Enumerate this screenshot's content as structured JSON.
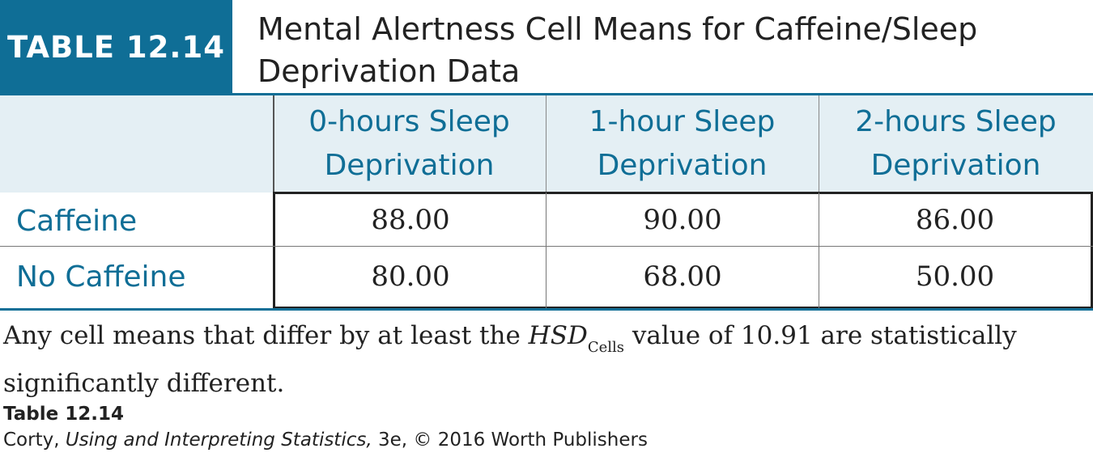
{
  "table": {
    "badge": "TABLE 12.14",
    "title_line1": "Mental Alertness Cell Means for Caffeine/Sleep",
    "title_line2": "Deprivation Data",
    "columns": [
      {
        "line1": "0-hours Sleep",
        "line2": "Deprivation"
      },
      {
        "line1": "1-hour Sleep",
        "line2": "Deprivation"
      },
      {
        "line1": "2-hours Sleep",
        "line2": "Deprivation"
      }
    ],
    "rows": [
      {
        "label": "Caffeine",
        "values": [
          "88.00",
          "90.00",
          "86.00"
        ]
      },
      {
        "label": "No Caffeine",
        "values": [
          "80.00",
          "68.00",
          "50.00"
        ]
      }
    ]
  },
  "note": {
    "before": "Any cell means that differ by at least the ",
    "hsd": "HSD",
    "subscript": "Cells",
    "after": " value of 10.91 are statistically significantly different."
  },
  "source": {
    "title": "Table 12.14",
    "author": "Corty, ",
    "book": "Using and Interpreting Statistics,",
    "rest": " 3e, © 2016 Worth Publishers"
  },
  "colors": {
    "accent": "#0f6e96",
    "header_band": "#e4eff4"
  }
}
